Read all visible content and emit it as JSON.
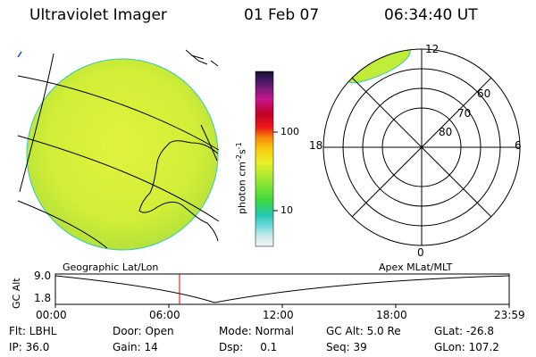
{
  "header": {
    "instrument": "Ultraviolet Imager",
    "date": "01 Feb 07",
    "time": "06:34:40 UT"
  },
  "colorbar": {
    "unit_label": "photon cm",
    "unit_exp1": "-2",
    "unit_s": "s",
    "unit_exp2": "-1",
    "ticks": [
      "100",
      "10"
    ]
  },
  "polar_plot": {
    "mlt_labels": [
      "12",
      "18",
      "6",
      "0"
    ],
    "mlat_labels": [
      "60",
      "70",
      "80"
    ]
  },
  "timeline": {
    "left_title": "Geographic Lat/Lon",
    "right_title": "Apex MLat/MLT",
    "axis_label": "GC Alt",
    "y_labels": [
      "9.0",
      "1.8"
    ],
    "x_labels": [
      "00:00",
      "06:00",
      "12:00",
      "18:00",
      "23:59"
    ],
    "current_time_marker": "06:34:40"
  },
  "info": {
    "row1": [
      {
        "label": "Flt: LBHL"
      },
      {
        "label": "Door: Open"
      },
      {
        "label": "Mode: Normal"
      },
      {
        "label": "GC Alt: 5.0 Re"
      },
      {
        "label": "GLat: -26.8"
      }
    ],
    "row2": [
      {
        "label": "IP: 36.0"
      },
      {
        "label": "Gain: 14"
      },
      {
        "label": "Dsp:     0.1"
      },
      {
        "label": "Seq: 39"
      },
      {
        "label": "GLon: 107.2"
      }
    ]
  },
  "colors": {
    "disk": "#d4f03a",
    "coast": "#000000",
    "marker": "#e00000"
  }
}
